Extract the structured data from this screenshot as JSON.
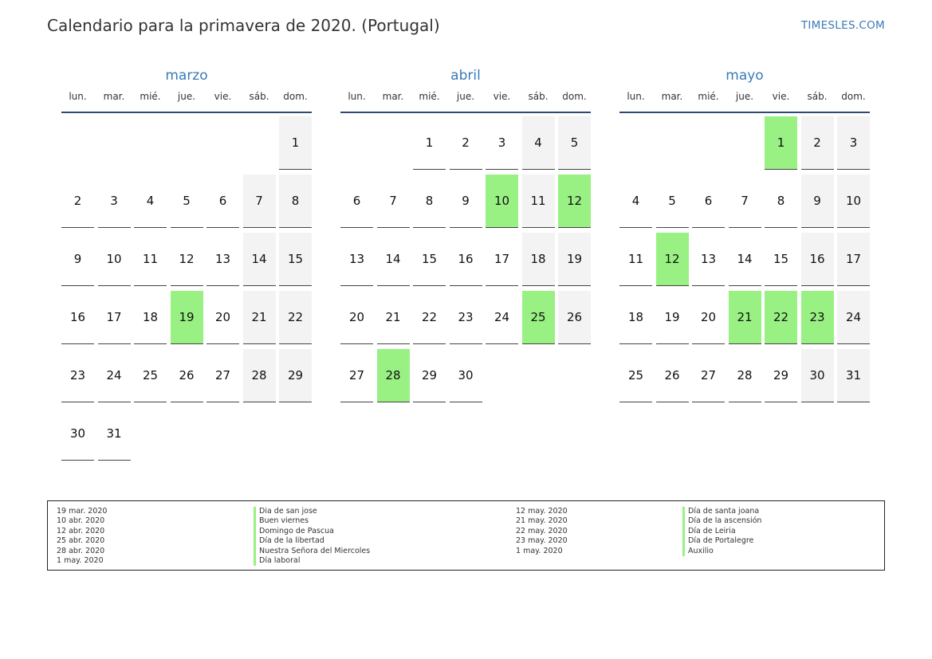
{
  "header": {
    "title": "Calendario para la primavera de 2020. (Portugal)",
    "brand": "TIMESLES.COM"
  },
  "weekdays": [
    "lun.",
    "mar.",
    "mié.",
    "jue.",
    "vie.",
    "sáb.",
    "dom."
  ],
  "colors": {
    "holiday": "#99f083",
    "weekend": "#f3f3f3",
    "accent": "#3a7ab8"
  },
  "months": [
    {
      "name": "marzo",
      "start_weekday": 6,
      "days": 31,
      "holidays": [
        19
      ]
    },
    {
      "name": "abril",
      "start_weekday": 2,
      "days": 30,
      "holidays": [
        10,
        12,
        25,
        28
      ]
    },
    {
      "name": "mayo",
      "start_weekday": 4,
      "days": 31,
      "holidays": [
        1,
        12,
        21,
        22,
        23
      ]
    }
  ],
  "legend": {
    "left": [
      {
        "date": "19 mar. 2020",
        "name": "Dia de san jose"
      },
      {
        "date": "10 abr. 2020",
        "name": "Buen viernes"
      },
      {
        "date": "12 abr. 2020",
        "name": "Domingo de Pascua"
      },
      {
        "date": "25 abr. 2020",
        "name": "Día de la libertad"
      },
      {
        "date": "28 abr. 2020",
        "name": "Nuestra Señora del Miercoles"
      },
      {
        "date": "1 may. 2020",
        "name": "Día laboral"
      }
    ],
    "right": [
      {
        "date": "12 may. 2020",
        "name": "Día de santa joana"
      },
      {
        "date": "21 may. 2020",
        "name": "Día de la ascensión"
      },
      {
        "date": "22 may. 2020",
        "name": "Día de Leiria"
      },
      {
        "date": "23 may. 2020",
        "name": "Día de Portalegre"
      },
      {
        "date": "1 may. 2020",
        "name": "Auxilio"
      }
    ]
  }
}
